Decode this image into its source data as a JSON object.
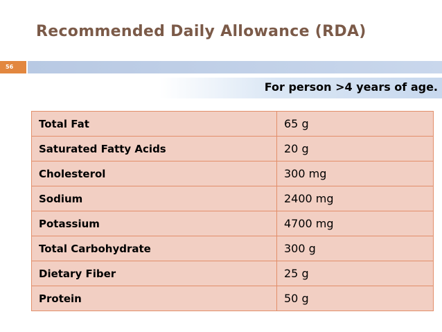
{
  "header": {
    "title": "Recommended Daily Allowance (RDA)",
    "slide_number": "56",
    "subtitle": "For person >4 years of age."
  },
  "table": {
    "rows": [
      [
        "Total Fat",
        "65 g"
      ],
      [
        "Saturated Fatty Acids",
        "20 g"
      ],
      [
        "Cholesterol",
        "300 mg"
      ],
      [
        "Sodium",
        "2400 mg"
      ],
      [
        "Potassium",
        "4700 mg"
      ],
      [
        "Total Carbohydrate",
        "300 g"
      ],
      [
        "Dietary Fiber",
        "25 g"
      ],
      [
        "Protein",
        "50 g"
      ]
    ]
  }
}
